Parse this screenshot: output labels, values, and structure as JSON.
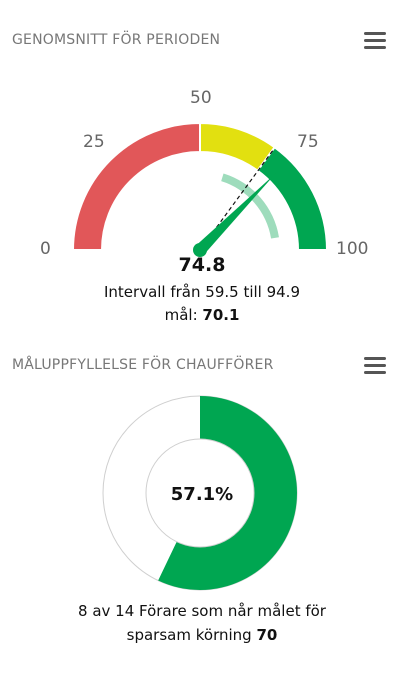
{
  "gauge_card": {
    "title": "GENOMSNITT FÖR PERIODEN",
    "menu_icon": "hamburger-menu-icon",
    "value": "74.8",
    "value_number": 74.8,
    "range_text": "Intervall från 59.5 till 94.9",
    "range_low": 59.5,
    "range_high": 94.9,
    "target_label": "mål: ",
    "target_value": "70.1",
    "target_number": 70.1,
    "min": 0,
    "max": 100,
    "ticks": [
      "0",
      "25",
      "50",
      "75",
      "100"
    ],
    "bands": [
      {
        "from": 0,
        "to": 50,
        "color": "#e15759"
      },
      {
        "from": 50,
        "to": 70,
        "color": "#e2e010"
      },
      {
        "from": 70,
        "to": 100,
        "color": "#00a651"
      }
    ],
    "range_band_color": "#9edcbc",
    "needle_color": "#00a651"
  },
  "donut_card": {
    "title": "MÅLUPPFYLLELSE FÖR CHAUFFÖRER",
    "menu_icon": "hamburger-menu-icon",
    "percent_text": "57.1%",
    "percent": 57.1,
    "fill_color": "#00a651",
    "track_color": "#ffffff",
    "desc_line1": "8 av 14 Förare som når målet för",
    "desc_line2": "sparsam körning ",
    "desc_value": "70"
  }
}
